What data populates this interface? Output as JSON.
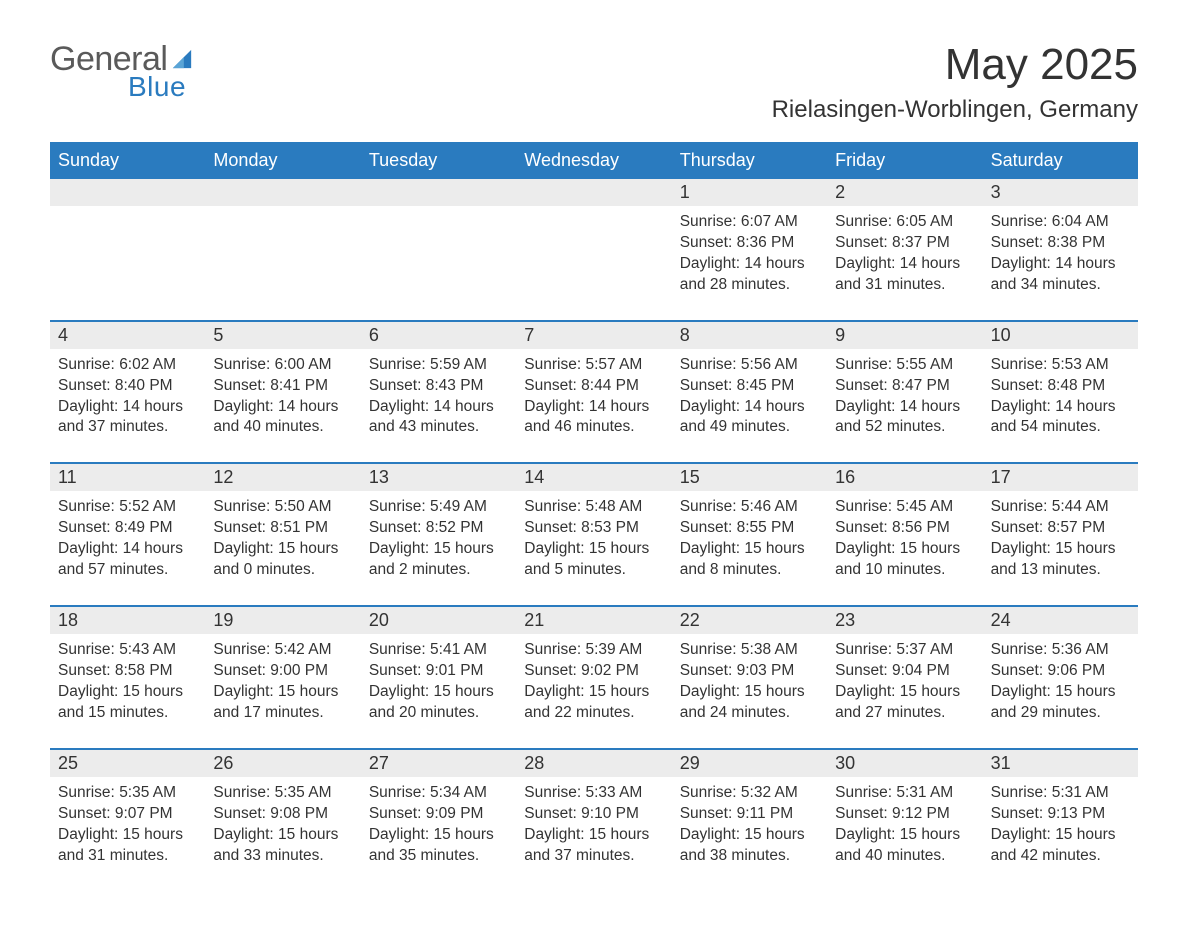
{
  "brand": {
    "general": "General",
    "blue": "Blue",
    "accent_color": "#2a7bbf",
    "text_color": "#333333"
  },
  "title": "May 2025",
  "location": "Rielasingen-Worblingen, Germany",
  "header_bg": "#2a7bbf",
  "strip_bg": "#ececec",
  "days_of_week": [
    "Sunday",
    "Monday",
    "Tuesday",
    "Wednesday",
    "Thursday",
    "Friday",
    "Saturday"
  ],
  "labels": {
    "sunrise": "Sunrise:",
    "sunset": "Sunset:",
    "daylight": "Daylight:"
  },
  "weeks": [
    [
      null,
      null,
      null,
      null,
      {
        "n": "1",
        "sunrise": "6:07 AM",
        "sunset": "8:36 PM",
        "daylight": "14 hours and 28 minutes."
      },
      {
        "n": "2",
        "sunrise": "6:05 AM",
        "sunset": "8:37 PM",
        "daylight": "14 hours and 31 minutes."
      },
      {
        "n": "3",
        "sunrise": "6:04 AM",
        "sunset": "8:38 PM",
        "daylight": "14 hours and 34 minutes."
      }
    ],
    [
      {
        "n": "4",
        "sunrise": "6:02 AM",
        "sunset": "8:40 PM",
        "daylight": "14 hours and 37 minutes."
      },
      {
        "n": "5",
        "sunrise": "6:00 AM",
        "sunset": "8:41 PM",
        "daylight": "14 hours and 40 minutes."
      },
      {
        "n": "6",
        "sunrise": "5:59 AM",
        "sunset": "8:43 PM",
        "daylight": "14 hours and 43 minutes."
      },
      {
        "n": "7",
        "sunrise": "5:57 AM",
        "sunset": "8:44 PM",
        "daylight": "14 hours and 46 minutes."
      },
      {
        "n": "8",
        "sunrise": "5:56 AM",
        "sunset": "8:45 PM",
        "daylight": "14 hours and 49 minutes."
      },
      {
        "n": "9",
        "sunrise": "5:55 AM",
        "sunset": "8:47 PM",
        "daylight": "14 hours and 52 minutes."
      },
      {
        "n": "10",
        "sunrise": "5:53 AM",
        "sunset": "8:48 PM",
        "daylight": "14 hours and 54 minutes."
      }
    ],
    [
      {
        "n": "11",
        "sunrise": "5:52 AM",
        "sunset": "8:49 PM",
        "daylight": "14 hours and 57 minutes."
      },
      {
        "n": "12",
        "sunrise": "5:50 AM",
        "sunset": "8:51 PM",
        "daylight": "15 hours and 0 minutes."
      },
      {
        "n": "13",
        "sunrise": "5:49 AM",
        "sunset": "8:52 PM",
        "daylight": "15 hours and 2 minutes."
      },
      {
        "n": "14",
        "sunrise": "5:48 AM",
        "sunset": "8:53 PM",
        "daylight": "15 hours and 5 minutes."
      },
      {
        "n": "15",
        "sunrise": "5:46 AM",
        "sunset": "8:55 PM",
        "daylight": "15 hours and 8 minutes."
      },
      {
        "n": "16",
        "sunrise": "5:45 AM",
        "sunset": "8:56 PM",
        "daylight": "15 hours and 10 minutes."
      },
      {
        "n": "17",
        "sunrise": "5:44 AM",
        "sunset": "8:57 PM",
        "daylight": "15 hours and 13 minutes."
      }
    ],
    [
      {
        "n": "18",
        "sunrise": "5:43 AM",
        "sunset": "8:58 PM",
        "daylight": "15 hours and 15 minutes."
      },
      {
        "n": "19",
        "sunrise": "5:42 AM",
        "sunset": "9:00 PM",
        "daylight": "15 hours and 17 minutes."
      },
      {
        "n": "20",
        "sunrise": "5:41 AM",
        "sunset": "9:01 PM",
        "daylight": "15 hours and 20 minutes."
      },
      {
        "n": "21",
        "sunrise": "5:39 AM",
        "sunset": "9:02 PM",
        "daylight": "15 hours and 22 minutes."
      },
      {
        "n": "22",
        "sunrise": "5:38 AM",
        "sunset": "9:03 PM",
        "daylight": "15 hours and 24 minutes."
      },
      {
        "n": "23",
        "sunrise": "5:37 AM",
        "sunset": "9:04 PM",
        "daylight": "15 hours and 27 minutes."
      },
      {
        "n": "24",
        "sunrise": "5:36 AM",
        "sunset": "9:06 PM",
        "daylight": "15 hours and 29 minutes."
      }
    ],
    [
      {
        "n": "25",
        "sunrise": "5:35 AM",
        "sunset": "9:07 PM",
        "daylight": "15 hours and 31 minutes."
      },
      {
        "n": "26",
        "sunrise": "5:35 AM",
        "sunset": "9:08 PM",
        "daylight": "15 hours and 33 minutes."
      },
      {
        "n": "27",
        "sunrise": "5:34 AM",
        "sunset": "9:09 PM",
        "daylight": "15 hours and 35 minutes."
      },
      {
        "n": "28",
        "sunrise": "5:33 AM",
        "sunset": "9:10 PM",
        "daylight": "15 hours and 37 minutes."
      },
      {
        "n": "29",
        "sunrise": "5:32 AM",
        "sunset": "9:11 PM",
        "daylight": "15 hours and 38 minutes."
      },
      {
        "n": "30",
        "sunrise": "5:31 AM",
        "sunset": "9:12 PM",
        "daylight": "15 hours and 40 minutes."
      },
      {
        "n": "31",
        "sunrise": "5:31 AM",
        "sunset": "9:13 PM",
        "daylight": "15 hours and 42 minutes."
      }
    ]
  ]
}
